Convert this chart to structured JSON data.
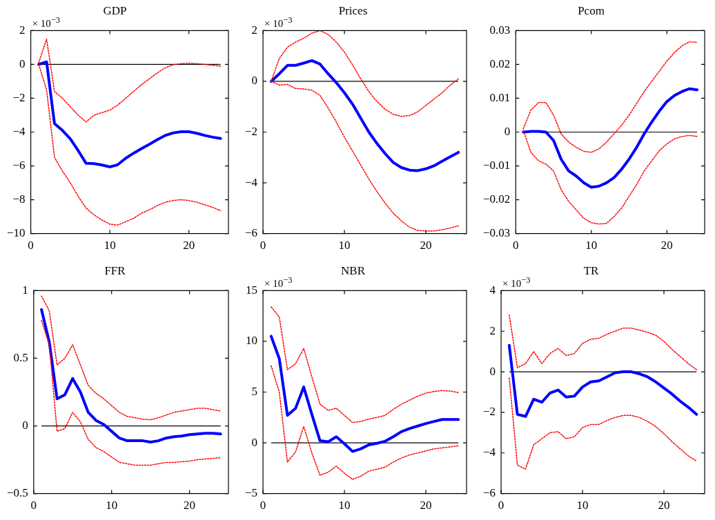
{
  "chart_data": [
    {
      "type": "line",
      "title": "GDP",
      "annotations": [
        "× 10$^{−3}$"
      ],
      "x": [
        1,
        2,
        3,
        4,
        5,
        6,
        7,
        8,
        9,
        10,
        11,
        12,
        13,
        14,
        15,
        16,
        17,
        18,
        19,
        20,
        21,
        22,
        23,
        24
      ],
      "xlim": [
        0,
        25
      ],
      "xticks": [
        0,
        10,
        20
      ],
      "ylim": [
        -10,
        2
      ],
      "yticks": [
        -10,
        -8,
        -6,
        -4,
        -2,
        0,
        2
      ],
      "grid": false,
      "legend": false,
      "ref_lines": [
        {
          "axis": "y",
          "value": 0,
          "color": "#000000"
        }
      ],
      "series": [
        {
          "color": "#ff0000",
          "line_style": "dotted",
          "values": [
            0.1,
            1.5,
            -1.6,
            -2.0,
            -2.5,
            -3.0,
            -3.4,
            -3.0,
            -2.85,
            -2.7,
            -2.4,
            -2.0,
            -1.6,
            -1.2,
            -0.85,
            -0.5,
            -0.2,
            -0.02,
            0.05,
            0.07,
            0.05,
            0,
            -0.05,
            -0.1
          ]
        },
        {
          "color": "#ff0000",
          "line_style": "dotted",
          "values": [
            0,
            -1.5,
            -5.5,
            -6.3,
            -7.0,
            -7.8,
            -8.5,
            -8.9,
            -9.2,
            -9.45,
            -9.5,
            -9.3,
            -9.1,
            -8.8,
            -8.6,
            -8.35,
            -8.15,
            -8.05,
            -8.0,
            -8.05,
            -8.15,
            -8.3,
            -8.45,
            -8.65
          ]
        },
        {
          "color": "#0000ff",
          "line_style": "solid",
          "values": [
            0,
            0.15,
            -3.5,
            -3.9,
            -4.4,
            -5.1,
            -5.85,
            -5.87,
            -5.95,
            -6.06,
            -5.93,
            -5.55,
            -5.25,
            -4.98,
            -4.72,
            -4.45,
            -4.2,
            -4.05,
            -3.98,
            -3.98,
            -4.07,
            -4.2,
            -4.3,
            -4.38
          ]
        }
      ]
    },
    {
      "type": "line",
      "title": "Prices",
      "annotations": [
        "× 10$^{−3}$"
      ],
      "x": [
        1,
        2,
        3,
        4,
        5,
        6,
        7,
        8,
        9,
        10,
        11,
        12,
        13,
        14,
        15,
        16,
        17,
        18,
        19,
        20,
        21,
        22,
        23,
        24
      ],
      "xlim": [
        0,
        25
      ],
      "xticks": [
        0,
        10,
        20
      ],
      "ylim": [
        -6,
        2
      ],
      "yticks": [
        -6,
        -4,
        -2,
        0,
        2
      ],
      "grid": false,
      "legend": false,
      "ref_lines": [
        {
          "axis": "y",
          "value": 0,
          "color": "#000000"
        }
      ],
      "series": [
        {
          "color": "#ff0000",
          "line_style": "dotted",
          "values": [
            0,
            0.9,
            1.35,
            1.55,
            1.7,
            1.9,
            2.0,
            1.85,
            1.55,
            1.15,
            0.65,
            0.1,
            -0.4,
            -0.8,
            -1.1,
            -1.3,
            -1.38,
            -1.35,
            -1.2,
            -0.95,
            -0.7,
            -0.45,
            -0.15,
            0.1
          ]
        },
        {
          "color": "#ff0000",
          "line_style": "dotted",
          "values": [
            0,
            -0.15,
            -0.12,
            -0.28,
            -0.3,
            -0.35,
            -0.55,
            -1.05,
            -1.6,
            -2.2,
            -2.75,
            -3.3,
            -3.85,
            -4.35,
            -4.8,
            -5.2,
            -5.5,
            -5.75,
            -5.88,
            -5.9,
            -5.9,
            -5.85,
            -5.78,
            -5.7
          ]
        },
        {
          "color": "#0000ff",
          "line_style": "solid",
          "values": [
            0,
            0.3,
            0.63,
            0.63,
            0.72,
            0.82,
            0.68,
            0.3,
            -0.05,
            -0.45,
            -0.9,
            -1.45,
            -2.0,
            -2.45,
            -2.85,
            -3.2,
            -3.4,
            -3.5,
            -3.52,
            -3.45,
            -3.33,
            -3.15,
            -2.97,
            -2.8
          ]
        }
      ]
    },
    {
      "type": "line",
      "title": "Pcom",
      "x": [
        1,
        2,
        3,
        4,
        5,
        6,
        7,
        8,
        9,
        10,
        11,
        12,
        13,
        14,
        15,
        16,
        17,
        18,
        19,
        20,
        21,
        22,
        23,
        24
      ],
      "xlim": [
        0,
        25
      ],
      "xticks": [
        0,
        10,
        20
      ],
      "ylim": [
        -0.03,
        0.03
      ],
      "yticks": [
        -0.03,
        -0.02,
        -0.01,
        0,
        0.01,
        0.02,
        0.03
      ],
      "grid": false,
      "legend": false,
      "ref_lines": [
        {
          "axis": "y",
          "value": 0,
          "color": "#000000"
        }
      ],
      "series": [
        {
          "color": "#ff0000",
          "line_style": "dotted",
          "values": [
            0.001,
            0.0065,
            0.0087,
            0.0087,
            0.005,
            -0.0005,
            -0.003,
            -0.0045,
            -0.0057,
            -0.006,
            -0.005,
            -0.003,
            -0.0005,
            0.002,
            0.005,
            0.0085,
            0.012,
            0.015,
            0.018,
            0.021,
            0.0235,
            0.0255,
            0.0267,
            0.0265
          ]
        },
        {
          "color": "#ff0000",
          "line_style": "dotted",
          "values": [
            0.0005,
            -0.006,
            -0.0085,
            -0.0095,
            -0.0115,
            -0.017,
            -0.0205,
            -0.023,
            -0.0255,
            -0.0268,
            -0.0272,
            -0.027,
            -0.025,
            -0.0225,
            -0.019,
            -0.0155,
            -0.0115,
            -0.0085,
            -0.0055,
            -0.0035,
            -0.002,
            -0.0013,
            -0.001,
            -0.0013
          ]
        },
        {
          "color": "#0000ff",
          "line_style": "solid",
          "values": [
            0,
            0.0002,
            0.0002,
            0,
            -0.0025,
            -0.008,
            -0.0115,
            -0.013,
            -0.015,
            -0.0163,
            -0.016,
            -0.015,
            -0.0135,
            -0.011,
            -0.008,
            -0.0045,
            -0.0005,
            0.003,
            0.0062,
            0.009,
            0.0108,
            0.012,
            0.0128,
            0.0125
          ]
        }
      ]
    },
    {
      "type": "line",
      "title": "FFR",
      "x": [
        1,
        2,
        3,
        4,
        5,
        6,
        7,
        8,
        9,
        10,
        11,
        12,
        13,
        14,
        15,
        16,
        17,
        18,
        19,
        20,
        21,
        22,
        23,
        24
      ],
      "xlim": [
        0,
        25
      ],
      "xticks": [
        0,
        10,
        20
      ],
      "ylim": [
        -0.5,
        1
      ],
      "yticks": [
        -0.5,
        0,
        0.5,
        1
      ],
      "grid": false,
      "legend": false,
      "ref_lines": [
        {
          "axis": "y",
          "value": 0,
          "color": "#000000"
        }
      ],
      "series": [
        {
          "color": "#ff0000",
          "line_style": "dotted",
          "values": [
            0.96,
            0.85,
            0.45,
            0.5,
            0.6,
            0.45,
            0.3,
            0.24,
            0.2,
            0.15,
            0.1,
            0.07,
            0.06,
            0.05,
            0.045,
            0.06,
            0.08,
            0.1,
            0.11,
            0.12,
            0.13,
            0.13,
            0.12,
            0.11
          ]
        },
        {
          "color": "#ff0000",
          "line_style": "dotted",
          "values": [
            0.78,
            0.6,
            -0.04,
            -0.02,
            0.1,
            0.03,
            -0.1,
            -0.16,
            -0.19,
            -0.23,
            -0.27,
            -0.28,
            -0.29,
            -0.29,
            -0.29,
            -0.28,
            -0.27,
            -0.27,
            -0.265,
            -0.26,
            -0.25,
            -0.245,
            -0.24,
            -0.235
          ]
        },
        {
          "color": "#0000ff",
          "line_style": "solid",
          "values": [
            0.86,
            0.62,
            0.2,
            0.23,
            0.35,
            0.25,
            0.1,
            0.04,
            0.01,
            -0.04,
            -0.09,
            -0.11,
            -0.11,
            -0.11,
            -0.12,
            -0.11,
            -0.09,
            -0.08,
            -0.075,
            -0.065,
            -0.06,
            -0.055,
            -0.055,
            -0.06
          ]
        }
      ]
    },
    {
      "type": "line",
      "title": "NBR",
      "annotations": [
        "× 10$^{−3}$"
      ],
      "x": [
        1,
        2,
        3,
        4,
        5,
        6,
        7,
        8,
        9,
        10,
        11,
        12,
        13,
        14,
        15,
        16,
        17,
        18,
        19,
        20,
        21,
        22,
        23,
        24
      ],
      "xlim": [
        0,
        25
      ],
      "xticks": [
        0,
        10,
        20
      ],
      "ylim": [
        -5,
        15
      ],
      "yticks": [
        -5,
        0,
        5,
        10,
        15
      ],
      "grid": false,
      "legend": false,
      "ref_lines": [
        {
          "axis": "y",
          "value": 0,
          "color": "#000000"
        }
      ],
      "series": [
        {
          "color": "#ff0000",
          "line_style": "dotted",
          "values": [
            13.4,
            12.4,
            7.2,
            7.8,
            9.3,
            6.5,
            3.8,
            3.2,
            3.4,
            2.7,
            2.0,
            2.1,
            2.35,
            2.5,
            2.7,
            3.3,
            3.8,
            4.2,
            4.6,
            4.9,
            5.05,
            5.15,
            5.1,
            4.95
          ]
        },
        {
          "color": "#ff0000",
          "line_style": "dotted",
          "values": [
            7.6,
            5.0,
            -1.9,
            -0.9,
            1.6,
            -1.0,
            -3.2,
            -2.9,
            -2.3,
            -3.0,
            -3.6,
            -3.3,
            -2.8,
            -2.6,
            -2.4,
            -1.9,
            -1.5,
            -1.2,
            -1.0,
            -0.8,
            -0.6,
            -0.5,
            -0.4,
            -0.3
          ]
        },
        {
          "color": "#0000ff",
          "line_style": "solid",
          "values": [
            10.5,
            8.3,
            2.7,
            3.4,
            5.5,
            2.8,
            0.2,
            0.1,
            0.6,
            -0.1,
            -0.85,
            -0.6,
            -0.2,
            -0.05,
            0.15,
            0.6,
            1.1,
            1.4,
            1.65,
            1.9,
            2.1,
            2.3,
            2.3,
            2.3
          ]
        }
      ]
    },
    {
      "type": "line",
      "title": "TR",
      "annotations": [
        "× 10$^{−3}$"
      ],
      "x": [
        1,
        2,
        3,
        4,
        5,
        6,
        7,
        8,
        9,
        10,
        11,
        12,
        13,
        14,
        15,
        16,
        17,
        18,
        19,
        20,
        21,
        22,
        23,
        24
      ],
      "xlim": [
        0,
        25
      ],
      "xticks": [
        0,
        10,
        20
      ],
      "ylim": [
        -6,
        4
      ],
      "yticks": [
        -6,
        -4,
        -2,
        0,
        2,
        4
      ],
      "grid": false,
      "legend": false,
      "ref_lines": [
        {
          "axis": "y",
          "value": 0,
          "color": "#000000"
        }
      ],
      "series": [
        {
          "color": "#ff0000",
          "line_style": "dotted",
          "values": [
            2.8,
            0.2,
            0.4,
            1.0,
            0.4,
            0.9,
            1.15,
            0.8,
            0.9,
            1.4,
            1.6,
            1.65,
            1.85,
            2.0,
            2.15,
            2.15,
            2.05,
            1.95,
            1.8,
            1.5,
            1.1,
            0.75,
            0.4,
            0.1
          ]
        },
        {
          "color": "#ff0000",
          "line_style": "dotted",
          "values": [
            -0.3,
            -4.6,
            -4.8,
            -3.6,
            -3.3,
            -3.0,
            -2.95,
            -3.3,
            -3.2,
            -2.75,
            -2.6,
            -2.6,
            -2.4,
            -2.25,
            -2.15,
            -2.15,
            -2.25,
            -2.45,
            -2.7,
            -3.05,
            -3.45,
            -3.8,
            -4.15,
            -4.4
          ]
        },
        {
          "color": "#0000ff",
          "line_style": "solid",
          "values": [
            1.3,
            -2.1,
            -2.2,
            -1.35,
            -1.5,
            -1.05,
            -0.9,
            -1.25,
            -1.2,
            -0.75,
            -0.5,
            -0.45,
            -0.25,
            -0.05,
            0,
            0,
            -0.1,
            -0.25,
            -0.5,
            -0.8,
            -1.1,
            -1.45,
            -1.75,
            -2.1
          ]
        }
      ]
    }
  ]
}
